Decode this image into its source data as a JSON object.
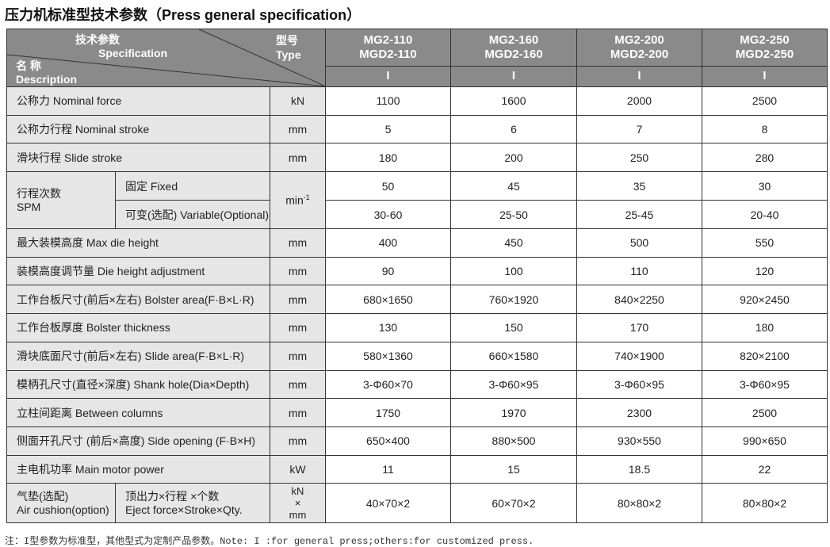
{
  "title": "压力机标准型技术参数（Press general specification）",
  "header": {
    "spec_cn": "技术参数",
    "spec_en": "Specification",
    "type_cn": "型号",
    "type_en": "Type",
    "desc_cn": "名 称",
    "desc_en": "Description",
    "models": [
      {
        "l1": "MG2-110",
        "l2": "MGD2-110",
        "type": "I"
      },
      {
        "l1": "MG2-160",
        "l2": "MGD2-160",
        "type": "I"
      },
      {
        "l1": "MG2-200",
        "l2": "MGD2-200",
        "type": "I"
      },
      {
        "l1": "MG2-250",
        "l2": "MGD2-250",
        "type": "I"
      }
    ]
  },
  "rows": [
    {
      "label": "公称力  Nominal force",
      "unit": "kN",
      "values": [
        "1100",
        "1600",
        "2000",
        "2500"
      ]
    },
    {
      "label": "公称力行程  Nominal stroke",
      "unit": "mm",
      "values": [
        "5",
        "6",
        "7",
        "8"
      ]
    },
    {
      "label": "滑块行程  Slide stroke",
      "unit": "mm",
      "values": [
        "180",
        "200",
        "250",
        "280"
      ]
    },
    {
      "label": "最大装模高度  Max die height",
      "unit": "mm",
      "values": [
        "400",
        "450",
        "500",
        "550"
      ]
    },
    {
      "label": "装模高度调节量  Die height adjustment",
      "unit": "mm",
      "values": [
        "90",
        "100",
        "110",
        "120"
      ]
    },
    {
      "label": "工作台板尺寸(前后×左右)  Bolster area(F·B×L·R)",
      "unit": "mm",
      "values": [
        "680×1650",
        "760×1920",
        "840×2250",
        "920×2450"
      ]
    },
    {
      "label": "工作台板厚度  Bolster thickness",
      "unit": "mm",
      "values": [
        "130",
        "150",
        "170",
        "180"
      ]
    },
    {
      "label": "滑块底面尺寸(前后×左右)  Slide area(F·B×L·R)",
      "unit": "mm",
      "values": [
        "580×1360",
        "660×1580",
        "740×1900",
        "820×2100"
      ]
    },
    {
      "label": "模柄孔尺寸(直径×深度)  Shank hole(Dia×Depth)",
      "unit": "mm",
      "values": [
        "3-Φ60×70",
        "3-Φ60×95",
        "3-Φ60×95",
        "3-Φ60×95"
      ]
    },
    {
      "label": "立柱间距离  Between columns",
      "unit": "mm",
      "values": [
        "1750",
        "1970",
        "2300",
        "2500"
      ]
    },
    {
      "label": "侧面开孔尺寸  (前后×高度)  Side opening (F·B×H)",
      "unit": "mm",
      "values": [
        "650×400",
        "880×500",
        "930×550",
        "990×650"
      ]
    },
    {
      "label": "主电机功率  Main motor power",
      "unit": "kW",
      "values": [
        "11",
        "15",
        "18.5",
        "22"
      ]
    }
  ],
  "spm": {
    "label_cn": "行程次数",
    "label_en": "SPM",
    "unit": "min",
    "unit_sup": "-1",
    "fixed": {
      "label": "固定  Fixed",
      "values": [
        "50",
        "45",
        "35",
        "30"
      ]
    },
    "variable": {
      "label": "可变(选配)  Variable(Optional)",
      "values": [
        "30-60",
        "25-50",
        "25-45",
        "20-40"
      ]
    }
  },
  "cushion": {
    "label_cn": "气垫(选配)",
    "label_en": "Air cushion(option)",
    "sub_cn": "顶出力×行程 ×个数",
    "sub_en": "Eject force×Stroke×Qty.",
    "unit1": "kN",
    "unit2": "×",
    "unit3": "mm",
    "values": [
      "40×70×2",
      "60×70×2",
      "80×80×2",
      "80×80×2"
    ]
  },
  "note": "注：I型参数为标准型，其他型式为定制产品参数。Note: I :for general press;others:for customized press."
}
